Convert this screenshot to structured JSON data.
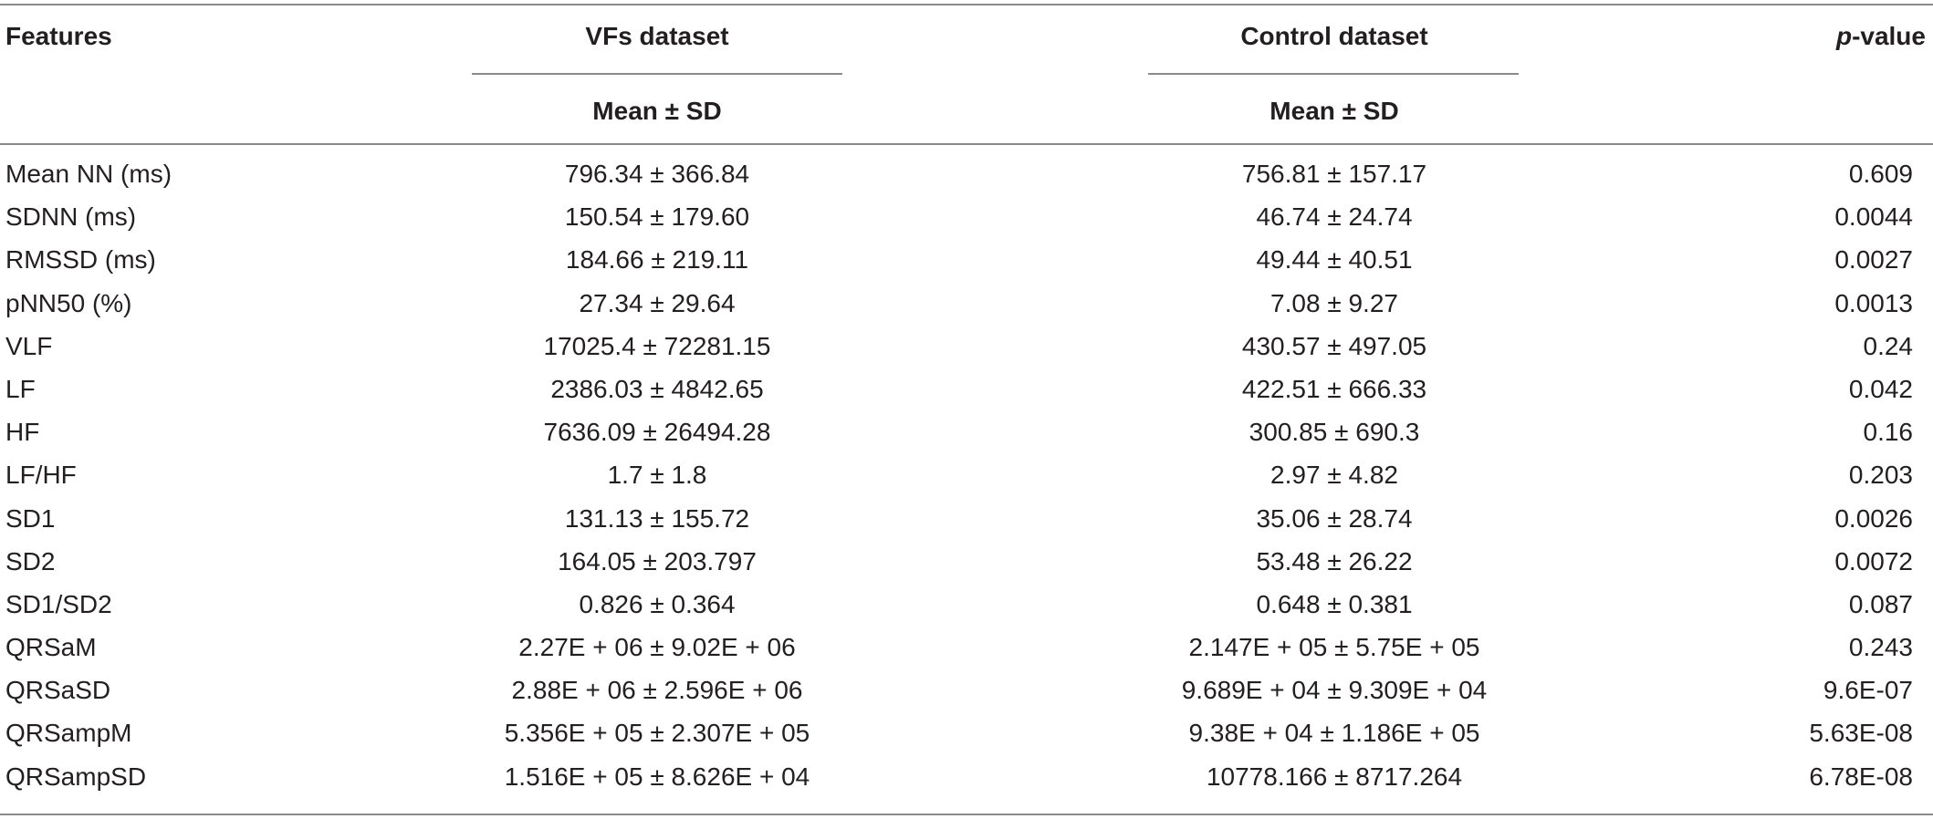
{
  "table": {
    "headers": {
      "features": "Features",
      "vfs": "VFs dataset",
      "control": "Control dataset",
      "p_italic": "p",
      "p_rest": "-value",
      "vfs_sub": "Mean ± SD",
      "control_sub": "Mean ± SD"
    },
    "rows": [
      {
        "feature": "Mean NN (ms)",
        "vfs": "796.34 ± 366.84",
        "control": "756.81 ± 157.17",
        "p": "0.609"
      },
      {
        "feature": "SDNN (ms)",
        "vfs": "150.54 ± 179.60",
        "control": "46.74 ± 24.74",
        "p": "0.0044"
      },
      {
        "feature": "RMSSD (ms)",
        "vfs": "184.66 ± 219.11",
        "control": "49.44 ± 40.51",
        "p": "0.0027"
      },
      {
        "feature": "pNN50 (%)",
        "vfs": "27.34 ± 29.64",
        "control": "7.08 ± 9.27",
        "p": "0.0013"
      },
      {
        "feature": "VLF",
        "vfs": "17025.4 ± 72281.15",
        "control": "430.57 ± 497.05",
        "p": "0.24"
      },
      {
        "feature": "LF",
        "vfs": "2386.03 ± 4842.65",
        "control": "422.51 ± 666.33",
        "p": "0.042"
      },
      {
        "feature": "HF",
        "vfs": "7636.09 ± 26494.28",
        "control": "300.85 ± 690.3",
        "p": "0.16"
      },
      {
        "feature": "LF/HF",
        "vfs": "1.7 ± 1.8",
        "control": "2.97 ± 4.82",
        "p": "0.203"
      },
      {
        "feature": "SD1",
        "vfs": "131.13 ± 155.72",
        "control": "35.06 ± 28.74",
        "p": "0.0026"
      },
      {
        "feature": "SD2",
        "vfs": "164.05 ± 203.797",
        "control": "53.48 ± 26.22",
        "p": "0.0072"
      },
      {
        "feature": "SD1/SD2",
        "vfs": "0.826 ± 0.364",
        "control": "0.648 ± 0.381",
        "p": "0.087"
      },
      {
        "feature": "QRSaM",
        "vfs": "2.27E + 06 ± 9.02E + 06",
        "control": "2.147E + 05 ± 5.75E + 05",
        "p": "0.243"
      },
      {
        "feature": "QRSaSD",
        "vfs": "2.88E + 06 ± 2.596E + 06",
        "control": "9.689E + 04 ± 9.309E + 04",
        "p": "9.6E-07"
      },
      {
        "feature": "QRSampM",
        "vfs": "5.356E + 05 ± 2.307E + 05",
        "control": "9.38E + 04 ± 1.186E + 05",
        "p": "5.63E-08"
      },
      {
        "feature": "QRSampSD",
        "vfs": "1.516E + 05 ± 8.626E + 04",
        "control": "10778.166 ± 8717.264",
        "p": "6.78E-08"
      }
    ]
  }
}
